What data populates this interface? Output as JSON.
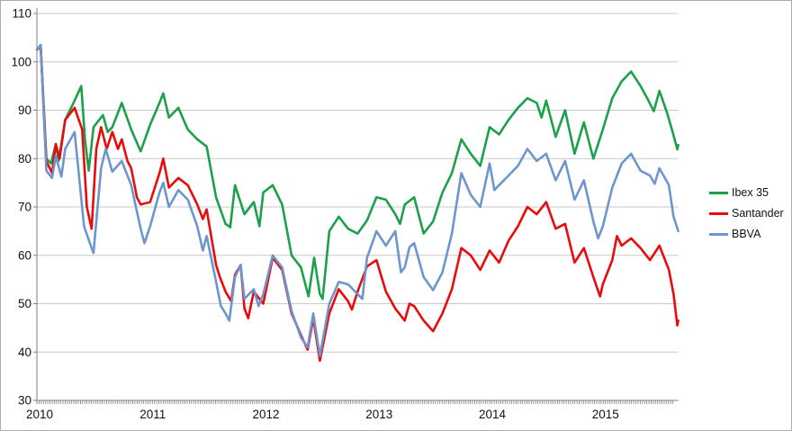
{
  "chart_data": {
    "type": "line",
    "title": "",
    "x_axis": {
      "labels": [
        "2010",
        "2011",
        "2012",
        "2013",
        "2014",
        "2015"
      ],
      "unit": "year",
      "minor_ticks": "weekly"
    },
    "y_axis": {
      "min": 30,
      "max": 110,
      "step": 10,
      "ticks": [
        "110",
        "100",
        "90",
        "80",
        "70",
        "60",
        "50",
        "40",
        "30"
      ]
    },
    "legend_position": "right",
    "grid": "horizontal",
    "point_format": "[months_since_2010_01, index_value]",
    "series": [
      {
        "name": "Ibex 35",
        "color": "#1CA04C",
        "points": [
          [
            0,
            102.5
          ],
          [
            0.4,
            103.5
          ],
          [
            1,
            80
          ],
          [
            1.5,
            79
          ],
          [
            2,
            83
          ],
          [
            2.3,
            79.5
          ],
          [
            3,
            88
          ],
          [
            4,
            92
          ],
          [
            4.7,
            95
          ],
          [
            5.1,
            84
          ],
          [
            5.5,
            77.5
          ],
          [
            6,
            86.5
          ],
          [
            7,
            89
          ],
          [
            7.5,
            85.5
          ],
          [
            8,
            86.5
          ],
          [
            9,
            91.5
          ],
          [
            10,
            86
          ],
          [
            11,
            81.5
          ],
          [
            12,
            87
          ],
          [
            13,
            91.5
          ],
          [
            13.4,
            93.5
          ],
          [
            14,
            88.5
          ],
          [
            15,
            90.5
          ],
          [
            16,
            86
          ],
          [
            17,
            84
          ],
          [
            18,
            82.5
          ],
          [
            19,
            72
          ],
          [
            20,
            66.5
          ],
          [
            20.5,
            65.8
          ],
          [
            21,
            74.5
          ],
          [
            22,
            68.5
          ],
          [
            23,
            71
          ],
          [
            23.6,
            66
          ],
          [
            24,
            73
          ],
          [
            25,
            74.5
          ],
          [
            26,
            70.5
          ],
          [
            27,
            60
          ],
          [
            28,
            57.5
          ],
          [
            28.8,
            51.5
          ],
          [
            29.4,
            59.5
          ],
          [
            30,
            52
          ],
          [
            30.3,
            51
          ],
          [
            31,
            65
          ],
          [
            32,
            68
          ],
          [
            33,
            65.5
          ],
          [
            34,
            64.5
          ],
          [
            35,
            67.2
          ],
          [
            36,
            72
          ],
          [
            37,
            71.5
          ],
          [
            38,
            68.5
          ],
          [
            38.5,
            66.5
          ],
          [
            39,
            70.5
          ],
          [
            40,
            72
          ],
          [
            41,
            64.5
          ],
          [
            42,
            67
          ],
          [
            43,
            73
          ],
          [
            44,
            77
          ],
          [
            45,
            84
          ],
          [
            46,
            81
          ],
          [
            47,
            78.5
          ],
          [
            48,
            86.5
          ],
          [
            49,
            85
          ],
          [
            50,
            88
          ],
          [
            51,
            90.5
          ],
          [
            52,
            92.5
          ],
          [
            53,
            91.5
          ],
          [
            53.5,
            88.5
          ],
          [
            54,
            92
          ],
          [
            55,
            84.5
          ],
          [
            56,
            90
          ],
          [
            57,
            81
          ],
          [
            58,
            87.5
          ],
          [
            59,
            80
          ],
          [
            60,
            86
          ],
          [
            61,
            92.5
          ],
          [
            62,
            96
          ],
          [
            63,
            98
          ],
          [
            64,
            95
          ],
          [
            64.7,
            92.5
          ],
          [
            65.4,
            89.8
          ],
          [
            66,
            94
          ],
          [
            66.8,
            89.5
          ],
          [
            67.4,
            85.5
          ],
          [
            67.9,
            81.9
          ],
          [
            68,
            82.8
          ]
        ]
      },
      {
        "name": "Santander",
        "color": "#E90B0B",
        "points": [
          [
            0,
            102.5
          ],
          [
            0.4,
            103
          ],
          [
            1,
            79.5
          ],
          [
            1.6,
            77
          ],
          [
            2,
            83
          ],
          [
            2.4,
            80
          ],
          [
            3,
            88
          ],
          [
            4,
            90.5
          ],
          [
            4.8,
            86
          ],
          [
            5.3,
            70
          ],
          [
            5.8,
            65.5
          ],
          [
            6.3,
            82
          ],
          [
            6.8,
            86.5
          ],
          [
            7.4,
            82
          ],
          [
            8,
            85.5
          ],
          [
            8.6,
            82
          ],
          [
            9,
            84
          ],
          [
            9.6,
            79.5
          ],
          [
            10,
            78
          ],
          [
            10.6,
            72
          ],
          [
            11,
            70.5
          ],
          [
            12,
            71
          ],
          [
            13,
            77
          ],
          [
            13.4,
            80
          ],
          [
            14,
            74
          ],
          [
            15,
            76
          ],
          [
            16,
            74.5
          ],
          [
            17,
            70.5
          ],
          [
            17.6,
            67.5
          ],
          [
            18,
            69.5
          ],
          [
            19,
            58
          ],
          [
            19.4,
            55.5
          ],
          [
            20,
            52.5
          ],
          [
            20.6,
            50.5
          ],
          [
            21,
            56
          ],
          [
            21.6,
            58
          ],
          [
            22,
            49
          ],
          [
            22.4,
            47
          ],
          [
            23,
            52.5
          ],
          [
            24,
            50
          ],
          [
            25,
            59.5
          ],
          [
            26,
            57
          ],
          [
            27,
            48
          ],
          [
            28,
            43.5
          ],
          [
            28.7,
            40.5
          ],
          [
            29.3,
            47
          ],
          [
            30,
            38.2
          ],
          [
            31,
            48
          ],
          [
            32,
            53
          ],
          [
            33,
            50.5
          ],
          [
            33.4,
            48.8
          ],
          [
            34,
            52.5
          ],
          [
            35,
            57.7
          ],
          [
            36,
            59
          ],
          [
            37,
            52.5
          ],
          [
            38,
            49
          ],
          [
            39,
            46.5
          ],
          [
            39.5,
            50
          ],
          [
            40,
            49.5
          ],
          [
            41,
            46.5
          ],
          [
            42,
            44.3
          ],
          [
            43,
            48
          ],
          [
            44,
            53
          ],
          [
            45,
            61.5
          ],
          [
            46,
            60
          ],
          [
            47,
            57
          ],
          [
            48,
            61
          ],
          [
            49,
            58.5
          ],
          [
            50,
            63
          ],
          [
            51,
            66
          ],
          [
            52,
            70
          ],
          [
            53,
            68.5
          ],
          [
            54,
            71
          ],
          [
            55,
            65.5
          ],
          [
            56,
            66.5
          ],
          [
            57,
            58.5
          ],
          [
            58,
            61.5
          ],
          [
            59,
            55.5
          ],
          [
            59.7,
            51.5
          ],
          [
            60,
            54
          ],
          [
            61,
            59
          ],
          [
            61.5,
            64
          ],
          [
            62,
            62
          ],
          [
            63,
            63.5
          ],
          [
            64,
            61.5
          ],
          [
            65,
            59
          ],
          [
            66,
            62
          ],
          [
            67,
            57
          ],
          [
            67.5,
            52
          ],
          [
            67.9,
            45.5
          ],
          [
            68,
            46.5
          ]
        ]
      },
      {
        "name": "BBVA",
        "color": "#6D96CE",
        "points": [
          [
            0,
            102.5
          ],
          [
            0.4,
            103.5
          ],
          [
            1,
            77.5
          ],
          [
            1.6,
            76
          ],
          [
            2,
            80.5
          ],
          [
            2.6,
            76.3
          ],
          [
            3,
            82
          ],
          [
            4,
            85.5
          ],
          [
            5,
            66
          ],
          [
            5.8,
            61.5
          ],
          [
            6,
            60.5
          ],
          [
            6.8,
            78
          ],
          [
            7.3,
            82
          ],
          [
            8,
            77.3
          ],
          [
            9,
            79.5
          ],
          [
            10,
            74.5
          ],
          [
            10.5,
            70
          ],
          [
            11,
            65.5
          ],
          [
            11.4,
            62.5
          ],
          [
            12,
            66
          ],
          [
            13,
            73
          ],
          [
            13.4,
            75
          ],
          [
            14,
            70
          ],
          [
            15,
            73.5
          ],
          [
            16,
            71.5
          ],
          [
            17,
            66
          ],
          [
            17.6,
            61
          ],
          [
            18,
            64
          ],
          [
            19,
            54.5
          ],
          [
            19.5,
            49.5
          ],
          [
            20,
            48
          ],
          [
            20.4,
            46.5
          ],
          [
            21,
            55.5
          ],
          [
            21.6,
            58
          ],
          [
            22,
            51
          ],
          [
            23,
            53
          ],
          [
            23.5,
            49.5
          ],
          [
            24,
            52
          ],
          [
            25,
            60
          ],
          [
            26,
            57.5
          ],
          [
            27,
            48.5
          ],
          [
            28,
            43
          ],
          [
            28.7,
            41
          ],
          [
            29.3,
            48
          ],
          [
            30,
            39.2
          ],
          [
            31,
            50
          ],
          [
            32,
            54.5
          ],
          [
            33,
            54
          ],
          [
            34,
            52
          ],
          [
            34.5,
            51
          ],
          [
            35,
            59.5
          ],
          [
            36,
            65
          ],
          [
            37,
            62
          ],
          [
            38,
            65
          ],
          [
            38.6,
            56.5
          ],
          [
            39,
            57.5
          ],
          [
            39.5,
            61.7
          ],
          [
            40,
            62.5
          ],
          [
            41,
            55.5
          ],
          [
            42,
            52.8
          ],
          [
            43,
            56.5
          ],
          [
            44,
            64.5
          ],
          [
            45,
            77
          ],
          [
            46,
            72.5
          ],
          [
            47,
            70
          ],
          [
            48,
            79
          ],
          [
            48.5,
            73.5
          ],
          [
            49,
            74.5
          ],
          [
            50,
            76.5
          ],
          [
            51,
            78.5
          ],
          [
            52,
            82
          ],
          [
            53,
            79.5
          ],
          [
            54,
            81
          ],
          [
            55,
            75.5
          ],
          [
            56,
            79.5
          ],
          [
            57,
            71.5
          ],
          [
            58,
            75.5
          ],
          [
            59,
            67
          ],
          [
            59.5,
            63.5
          ],
          [
            60,
            66
          ],
          [
            61,
            74
          ],
          [
            62,
            79
          ],
          [
            63,
            81
          ],
          [
            64,
            77.5
          ],
          [
            65,
            76.5
          ],
          [
            65.5,
            74.8
          ],
          [
            66,
            78
          ],
          [
            67,
            74.5
          ],
          [
            67.5,
            68
          ],
          [
            68,
            65
          ]
        ]
      }
    ]
  },
  "colors": {
    "gridline": "#c9c9c9",
    "axis": "#7f7f7f",
    "tick_label": "#111111",
    "background": "#ffffff",
    "border": "#acacac"
  }
}
